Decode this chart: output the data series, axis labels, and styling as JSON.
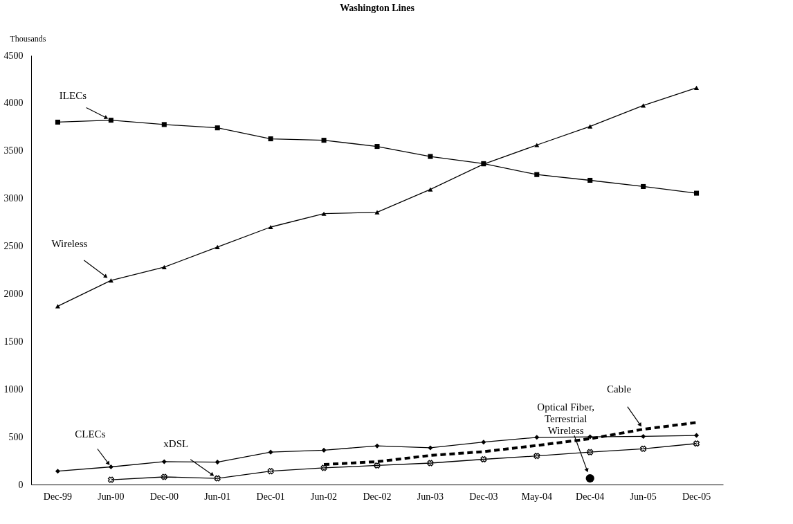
{
  "chart_data": {
    "type": "line",
    "title": "Washington Lines",
    "ylabel": "Thousands",
    "categories": [
      "Dec-99",
      "Jun-00",
      "Dec-00",
      "Jun-01",
      "Dec-01",
      "Jun-02",
      "Dec-02",
      "Jun-03",
      "Dec-03",
      "May-04",
      "Dec-04",
      "Jun-05",
      "Dec-05"
    ],
    "series": [
      {
        "name": "ILECs",
        "color": "#000000",
        "marker": "square",
        "values": [
          3800,
          3820,
          3775,
          3740,
          3625,
          3610,
          3545,
          3440,
          3365,
          3250,
          3190,
          3125,
          3055
        ]
      },
      {
        "name": "Wireless",
        "color": "#000000",
        "marker": "triangle",
        "values": [
          1870,
          2140,
          2280,
          2490,
          2700,
          2840,
          2855,
          3095,
          3360,
          3560,
          3755,
          3975,
          4160
        ]
      },
      {
        "name": "CLECs",
        "color": "#000000",
        "marker": "diamond",
        "values": [
          140,
          185,
          240,
          235,
          340,
          360,
          405,
          385,
          445,
          495,
          500,
          505,
          515
        ]
      },
      {
        "name": "xDSL",
        "color": "#000000",
        "marker": "cross",
        "values": [
          null,
          50,
          80,
          65,
          140,
          175,
          200,
          225,
          265,
          300,
          340,
          375,
          430
        ]
      },
      {
        "name": "Cable",
        "color": "#000000",
        "marker": "none",
        "line_style": "dashed",
        "values": [
          null,
          null,
          null,
          null,
          null,
          210,
          240,
          305,
          345,
          410,
          480,
          580,
          650
        ]
      },
      {
        "name": "Optical Fiber,\nTerrestrial\nWireless",
        "type": "scatter",
        "color": "#000000",
        "marker": "circle",
        "values": [
          null,
          null,
          null,
          null,
          null,
          null,
          null,
          null,
          null,
          null,
          65,
          null,
          null
        ]
      }
    ],
    "ylim": [
      0,
      4500
    ],
    "yticks": [
      0,
      500,
      1000,
      1500,
      2000,
      2500,
      3000,
      3500,
      4000,
      4500
    ],
    "grid": false
  }
}
